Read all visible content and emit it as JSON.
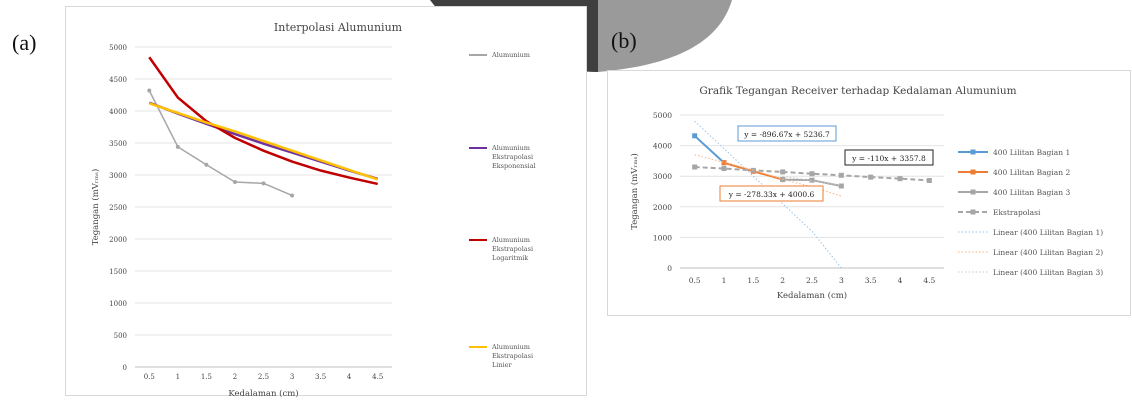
{
  "panels": {
    "a_label": "(a)",
    "b_label": "(b)"
  },
  "colors": {
    "gray": "#a6a6a6",
    "purple": "#7030a0",
    "red": "#c00000",
    "yellow": "#ffc000",
    "blue": "#5b9bd5",
    "orange": "#ed7d31",
    "dark_gray": "#7f7f7f"
  },
  "chart_data": [
    {
      "type": "line",
      "title": "Interpolasi Alumunium",
      "xlabel": "Kedalaman (cm)",
      "ylabel": "Tegangan (mVᵣₘₛ)",
      "categories": [
        "0.5",
        "1",
        "1.5",
        "2",
        "2.5",
        "3",
        "3.5",
        "4",
        "4.5"
      ],
      "ylim": [
        0,
        5000
      ],
      "yticks": [
        0,
        500,
        1000,
        1500,
        2000,
        2500,
        3000,
        3500,
        4000,
        4500,
        5000
      ],
      "grid": true,
      "legend_position": "right",
      "series": [
        {
          "name": "Alumunium",
          "color": "#a6a6a6",
          "marker": true,
          "values": [
            4320,
            3440,
            3160,
            2890,
            2870,
            2680,
            null,
            null,
            null
          ]
        },
        {
          "name": "Alumunium Ekstrapolasi Eksponensial",
          "color": "#7030a0",
          "marker": false,
          "values": [
            4130,
            3960,
            3800,
            3640,
            3490,
            3350,
            3210,
            3070,
            2940
          ]
        },
        {
          "name": "Alumunium Ekstrapolasi Logaritmik",
          "color": "#c00000",
          "marker": false,
          "values": [
            4840,
            4210,
            3840,
            3580,
            3380,
            3210,
            3070,
            2960,
            2860
          ]
        },
        {
          "name": "Alumunium Ekstrapolasi Linier",
          "color": "#ffc000",
          "marker": false,
          "values": [
            4120,
            3970,
            3820,
            3680,
            3530,
            3380,
            3230,
            3080,
            2930
          ]
        }
      ]
    },
    {
      "type": "line",
      "title": "Grafik Tegangan Receiver terhadap Kedalaman Alumunium",
      "xlabel": "Kedalaman (cm)",
      "ylabel": "Tegangan (mVᵣₘₛ)",
      "categories": [
        "0.5",
        "1",
        "1.5",
        "2",
        "2.5",
        "3",
        "3.5",
        "4",
        "4.5"
      ],
      "ylim": [
        0,
        5000
      ],
      "yticks": [
        0,
        1000,
        2000,
        3000,
        4000,
        5000
      ],
      "grid": true,
      "legend_position": "right",
      "series": [
        {
          "name": "400 Lilitan Bagian 1",
          "color": "#5b9bd5",
          "style": "solid-marker",
          "values": [
            4320,
            3440,
            null,
            null,
            null,
            null,
            null,
            null,
            null
          ]
        },
        {
          "name": "400 Lilitan Bagian 2",
          "color": "#ed7d31",
          "style": "solid-marker",
          "values": [
            null,
            3440,
            3160,
            2890,
            null,
            null,
            null,
            null,
            null
          ]
        },
        {
          "name": "400 Lilitan Bagian 3",
          "color": "#a6a6a6",
          "style": "solid-marker",
          "values": [
            null,
            null,
            null,
            2890,
            2870,
            2680,
            null,
            null,
            null
          ]
        },
        {
          "name": "Ekstrapolasi",
          "color": "#a6a6a6",
          "style": "dash-marker",
          "values": [
            3300,
            3250,
            3190,
            3140,
            3080,
            3030,
            2970,
            2920,
            2860
          ]
        },
        {
          "name": "Linear (400 Lilitan Bagian 1)",
          "color": "#9dc3e6",
          "style": "dotted",
          "values": [
            4800,
            3900,
            3000,
            2100,
            1200,
            0,
            null,
            null,
            null
          ]
        },
        {
          "name": "Linear (400 Lilitan Bagian 2)",
          "color": "#f4b183",
          "style": "dotted",
          "values": [
            3700,
            3450,
            3200,
            2900,
            2650,
            2350,
            null,
            null,
            null
          ]
        },
        {
          "name": "Linear (400 Lilitan Bagian 3)",
          "color": "#c9c9c9",
          "style": "dotted",
          "values": [
            null,
            null,
            null,
            3000,
            2850,
            2700,
            null,
            null,
            null
          ]
        }
      ],
      "annotations": [
        {
          "text": "y = -896.67x + 5236.7",
          "color": "#5b9bd5"
        },
        {
          "text": "y = -110x + 3357.8",
          "color": "#222222"
        },
        {
          "text": "y = -278.33x + 4000.6",
          "color": "#ed7d31"
        }
      ]
    }
  ]
}
